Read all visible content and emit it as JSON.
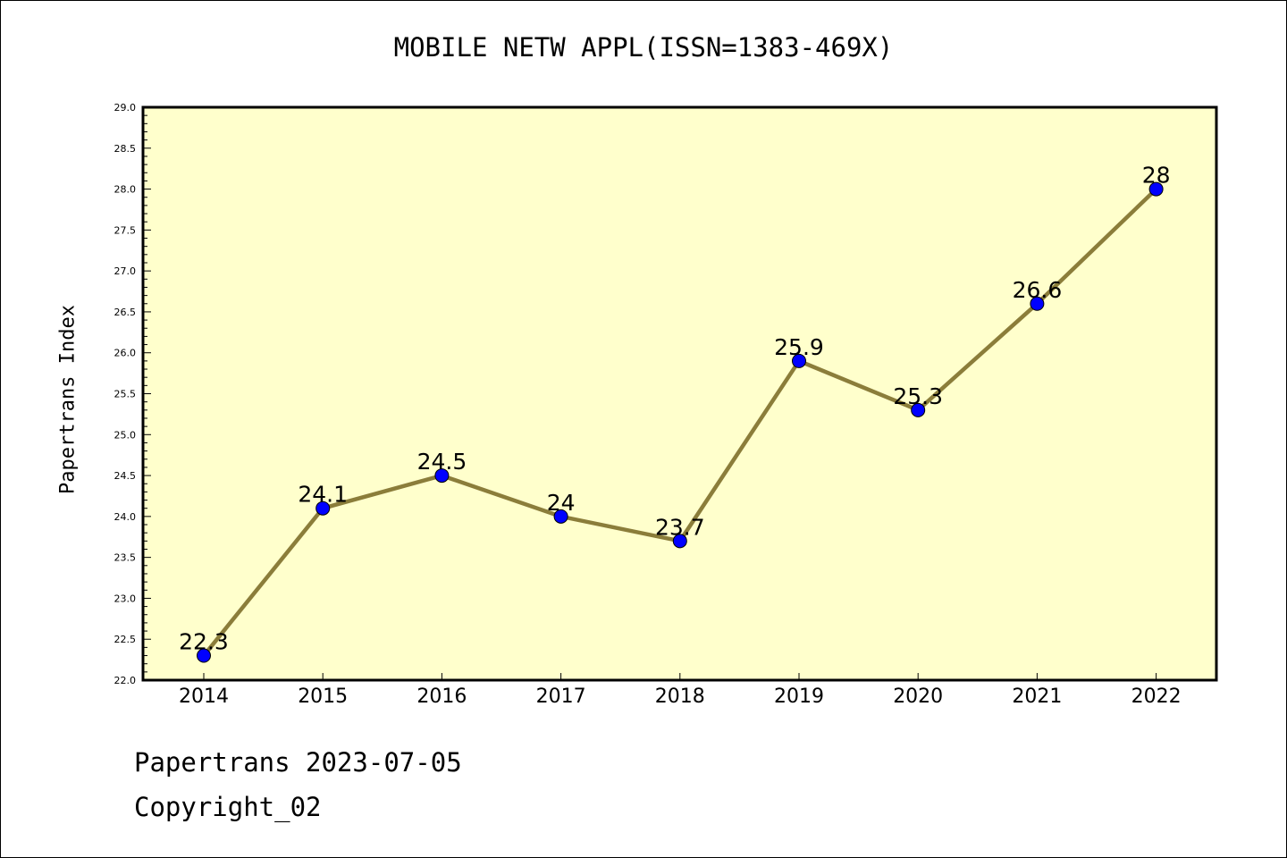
{
  "chart_data": {
    "type": "line",
    "title": "MOBILE NETW APPL(ISSN=1383-469X)",
    "xlabel": "",
    "ylabel": "Papertrans Index",
    "categories": [
      "2014",
      "2015",
      "2016",
      "2017",
      "2018",
      "2019",
      "2020",
      "2021",
      "2022"
    ],
    "series": [
      {
        "values": [
          22.3,
          24.1,
          24.5,
          24,
          23.7,
          25.9,
          25.3,
          26.6,
          28
        ],
        "labels": [
          "22.3",
          "24.1",
          "24.5",
          "24",
          "23.7",
          "25.9",
          "25.3",
          "26.6",
          "28"
        ]
      }
    ],
    "ylim": [
      22.0,
      29.0
    ],
    "yticks": [
      "22.0",
      "22.5",
      "23.0",
      "23.5",
      "24.0",
      "24.5",
      "25.0",
      "25.5",
      "26.0",
      "26.5",
      "27.0",
      "27.5",
      "28.0",
      "28.5",
      "29.0"
    ],
    "grid": false,
    "colors": {
      "plot_background": "#ffffcc",
      "line": "#8b7d3a",
      "marker": "#0000ff"
    }
  },
  "footer": {
    "line1": "Papertrans 2023-07-05",
    "line2": "Copyright_02"
  }
}
